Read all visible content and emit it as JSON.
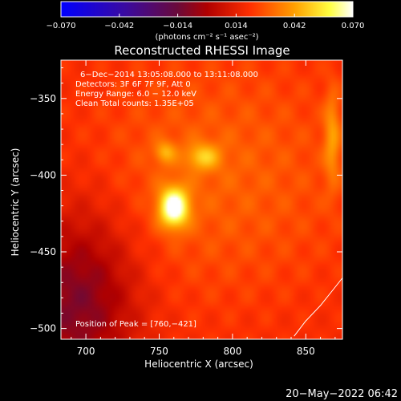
{
  "colorbar": {
    "ticks": [
      {
        "value": -0.07,
        "label": "−0.070"
      },
      {
        "value": -0.042,
        "label": "−0.042"
      },
      {
        "value": -0.014,
        "label": "−0.014"
      },
      {
        "value": 0.014,
        "label": "0.014"
      },
      {
        "value": 0.042,
        "label": "0.042"
      },
      {
        "value": 0.07,
        "label": "0.070"
      }
    ],
    "units": "(photons cm⁻² s⁻¹ asec⁻²)"
  },
  "chart_data": {
    "type": "heatmap",
    "title": "Reconstructed RHESSI Image",
    "xlabel": "Heliocentric X (arcsec)",
    "ylabel": "Heliocentric Y (arcsec)",
    "xlim": [
      683,
      875
    ],
    "ylim": [
      -507,
      -325
    ],
    "xticks": [
      700,
      750,
      800,
      850
    ],
    "yticks": [
      -350,
      -400,
      -450,
      -500
    ],
    "xtick_labels": [
      "700",
      "750",
      "800",
      "850"
    ],
    "ytick_labels": [
      "−350",
      "−400",
      "−450",
      "−500"
    ],
    "clim": [
      -0.07,
      0.07
    ],
    "colormap": "rainbow-hot (blue-purple-red-orange-yellow-white)",
    "sources": [
      {
        "x": 760,
        "y": -421,
        "peak": 0.07,
        "role": "main"
      },
      {
        "x": 780,
        "y": -388,
        "peak": 0.046
      },
      {
        "x": 754,
        "y": -385,
        "peak": 0.042
      },
      {
        "x": 868,
        "y": -375,
        "peak": 0.04,
        "elongated": true
      }
    ],
    "limb_curve": [
      [
        875,
        -467
      ],
      [
        870,
        -473
      ],
      [
        860,
        -485
      ],
      [
        850,
        -495
      ],
      [
        842,
        -505
      ]
    ],
    "annotations": [
      "6−Dec−2014 13:05:08.000 to 13:11:08.000",
      "Detectors: 3F 6F 7F 9F, Att 0",
      "Energy Range: 6.0 − 12.0 keV",
      "Clean    Total counts: 1.35E+05"
    ],
    "peak_text": "Position of Peak = [760,−421]",
    "timestamp": "20−May−2022 06:42"
  }
}
